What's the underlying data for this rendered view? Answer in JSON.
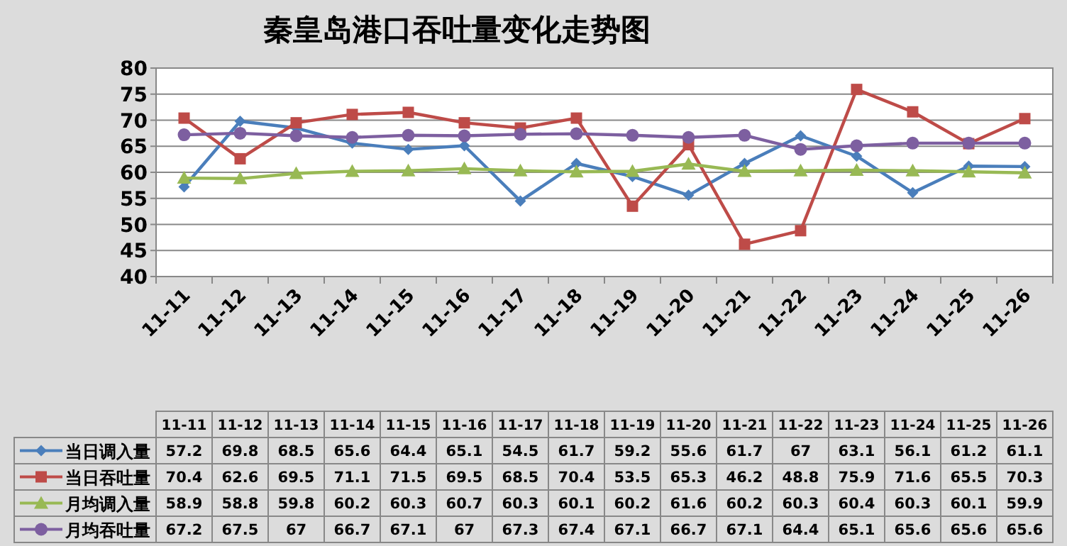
{
  "chart_data": {
    "type": "line",
    "title": "秦皇岛港口吞吐量变化走势图",
    "categories": [
      "11-11",
      "11-12",
      "11-13",
      "11-14",
      "11-15",
      "11-16",
      "11-17",
      "11-18",
      "11-19",
      "11-20",
      "11-21",
      "11-22",
      "11-23",
      "11-24",
      "11-25",
      "11-26"
    ],
    "ylim": [
      40,
      80
    ],
    "yticks": [
      40,
      45,
      50,
      55,
      60,
      65,
      70,
      75,
      80
    ],
    "grid": "y",
    "data_labels": true,
    "legend": "bottom",
    "series": [
      {
        "name": "当日调入量",
        "color": "#4a7ebb",
        "marker": "diamond",
        "values": [
          57.2,
          69.8,
          68.5,
          65.6,
          64.4,
          65.1,
          54.5,
          61.7,
          59.2,
          55.6,
          61.7,
          67,
          63.1,
          56.1,
          61.2,
          61.1
        ]
      },
      {
        "name": "当日吞吐量",
        "color": "#be4b48",
        "marker": "square",
        "values": [
          70.4,
          62.6,
          69.5,
          71.1,
          71.5,
          69.5,
          68.5,
          70.4,
          53.5,
          65.3,
          46.2,
          48.8,
          75.9,
          71.6,
          65.5,
          70.3
        ]
      },
      {
        "name": "月均调入量",
        "color": "#98b954",
        "marker": "triangle",
        "values": [
          58.9,
          58.8,
          59.8,
          60.2,
          60.3,
          60.7,
          60.3,
          60.1,
          60.2,
          61.6,
          60.2,
          60.3,
          60.4,
          60.3,
          60.1,
          59.9
        ]
      },
      {
        "name": "月均吞吐量",
        "color": "#7d5fa0",
        "marker": "circle",
        "values": [
          67.2,
          67.5,
          67,
          66.7,
          67.1,
          67,
          67.3,
          67.4,
          67.1,
          66.7,
          67.1,
          64.4,
          65.1,
          65.6,
          65.6,
          65.6
        ]
      }
    ]
  }
}
